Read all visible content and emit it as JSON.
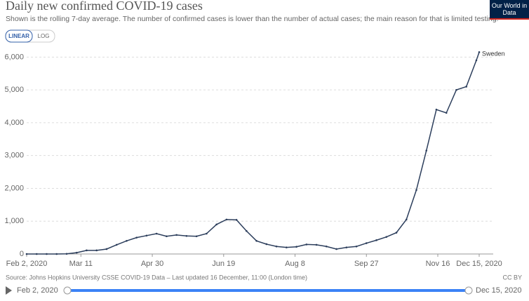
{
  "header": {
    "title": "Daily new confirmed COVID-19 cases",
    "subtitle": "Shown is the rolling 7-day average. The number of confirmed cases is lower than the number of actual cases; the main reason for that is limited testing.",
    "logo": "Our World in Data",
    "buttons": [
      "LINEAR",
      "LOG"
    ]
  },
  "chart_data": {
    "type": "line",
    "x": [
      "2020-02-02",
      "2020-02-09",
      "2020-02-16",
      "2020-02-23",
      "2020-03-01",
      "2020-03-08",
      "2020-03-15",
      "2020-03-22",
      "2020-03-29",
      "2020-04-05",
      "2020-04-12",
      "2020-04-19",
      "2020-04-26",
      "2020-05-03",
      "2020-05-10",
      "2020-05-17",
      "2020-05-24",
      "2020-05-31",
      "2020-06-07",
      "2020-06-14",
      "2020-06-21",
      "2020-06-28",
      "2020-07-05",
      "2020-07-12",
      "2020-07-19",
      "2020-07-26",
      "2020-08-02",
      "2020-08-09",
      "2020-08-16",
      "2020-08-23",
      "2020-08-30",
      "2020-09-06",
      "2020-09-13",
      "2020-09-20",
      "2020-09-27",
      "2020-10-04",
      "2020-10-11",
      "2020-10-18",
      "2020-10-25",
      "2020-11-01",
      "2020-11-08",
      "2020-11-15",
      "2020-11-22",
      "2020-11-29",
      "2020-12-06",
      "2020-12-13",
      "2020-12-15"
    ],
    "series": [
      {
        "name": "Sweden",
        "color": "#2c3e5c",
        "values": [
          0,
          0,
          0,
          0,
          5,
          40,
          110,
          110,
          150,
          280,
          400,
          500,
          560,
          620,
          540,
          580,
          550,
          540,
          620,
          900,
          1050,
          1040,
          700,
          400,
          300,
          230,
          200,
          220,
          290,
          280,
          230,
          150,
          200,
          230,
          330,
          420,
          520,
          650,
          1050,
          1950,
          3150,
          4400,
          4300,
          5000,
          5100,
          5900,
          6150
        ]
      }
    ],
    "xlim": [
      "2020-02-02",
      "2020-12-15"
    ],
    "xticks": [
      {
        "value": "2020-02-02",
        "label": "Feb 2, 2020"
      },
      {
        "value": "2020-03-11",
        "label": "Mar 11"
      },
      {
        "value": "2020-04-30",
        "label": "Apr 30"
      },
      {
        "value": "2020-06-19",
        "label": "Jun 19"
      },
      {
        "value": "2020-08-08",
        "label": "Aug 8"
      },
      {
        "value": "2020-09-27",
        "label": "Sep 27"
      },
      {
        "value": "2020-11-16",
        "label": "Nov 16"
      },
      {
        "value": "2020-12-15",
        "label": "Dec 15, 2020"
      }
    ],
    "ylim": [
      0,
      6200
    ],
    "yticks": [
      0,
      {
        "value": 1000,
        "label": "1,000"
      },
      {
        "value": 2000,
        "label": "2,000"
      },
      {
        "value": 3000,
        "label": "3,000"
      },
      {
        "value": 4000,
        "label": "4,000"
      },
      {
        "value": 5000,
        "label": "5,000"
      },
      {
        "value": 6000,
        "label": "6,000"
      }
    ],
    "grid": true
  },
  "footer": {
    "source": "Source: Johns Hopkins University CSSE COVID-19 Data – Last updated 16 December, 11:00 (London time)",
    "license": "CC BY"
  },
  "timeline": {
    "start": "Feb 2, 2020",
    "end": "Dec 15, 2020"
  }
}
